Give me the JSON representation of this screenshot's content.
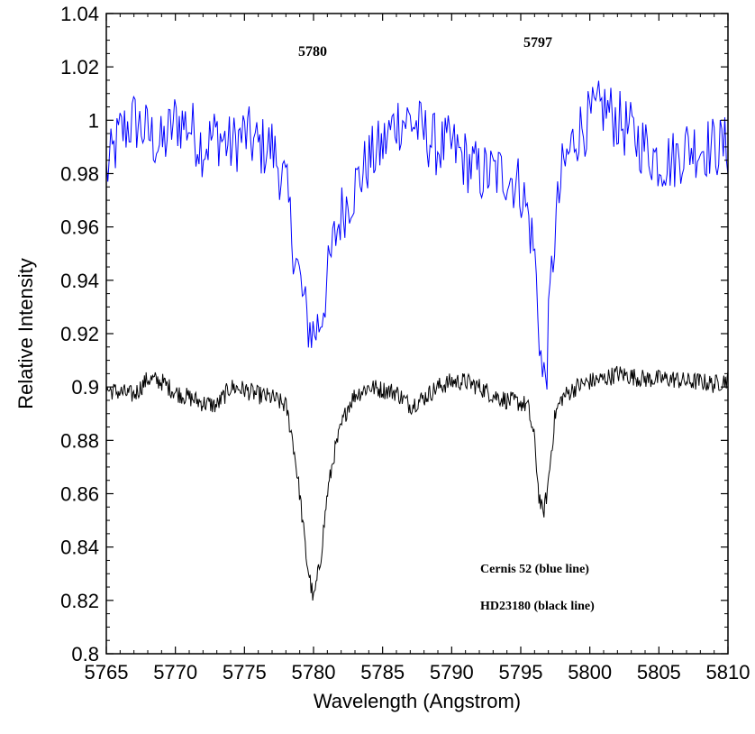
{
  "chart_data": {
    "type": "line",
    "xlabel": "Wavelength (Angstrom)",
    "ylabel": "Relative Intensity",
    "xlim": [
      5765,
      5810
    ],
    "ylim": [
      0.8,
      1.04
    ],
    "x_ticks": [
      "5765",
      "5770",
      "5775",
      "5780",
      "5785",
      "5790",
      "5795",
      "5800",
      "5805",
      "5810"
    ],
    "y_ticks": [
      "0.8",
      "0.82",
      "0.84",
      "0.86",
      "0.88",
      "0.9",
      "0.92",
      "0.94",
      "0.96",
      "0.98",
      "1",
      "1.02",
      "1.04"
    ],
    "grid": false,
    "annotations": {
      "band1": "5780",
      "band2": "5797",
      "legend1": "Cernis 52 (blue line)",
      "legend2": "HD23180 (black line)"
    },
    "series": [
      {
        "color": "#0000ff",
        "x": [
          5765,
          5766,
          5767,
          5768,
          5769,
          5770,
          5771,
          5772,
          5773,
          5774,
          5775,
          5776,
          5777,
          5778,
          5778.5,
          5779,
          5779.5,
          5780,
          5780.5,
          5781,
          5781.5,
          5782,
          5782.5,
          5783,
          5784,
          5785,
          5786,
          5787,
          5788,
          5789,
          5790,
          5791,
          5792,
          5793,
          5794,
          5795,
          5795.5,
          5796,
          5796.3,
          5796.6,
          5796.9,
          5797.2,
          5797.5,
          5798,
          5799,
          5800,
          5801,
          5802,
          5803,
          5804,
          5805,
          5806,
          5807,
          5808,
          5809,
          5810
        ],
        "y": [
          0.98,
          0.995,
          1.0,
          0.995,
          0.99,
          1.0,
          0.998,
          0.99,
          0.995,
          0.99,
          0.995,
          0.99,
          0.99,
          0.975,
          0.955,
          0.94,
          0.925,
          0.92,
          0.925,
          0.94,
          0.955,
          0.965,
          0.97,
          0.975,
          0.985,
          0.99,
          1.0,
          1.0,
          0.995,
          0.99,
          0.99,
          0.985,
          0.98,
          0.98,
          0.98,
          0.975,
          0.965,
          0.95,
          0.925,
          0.9,
          0.91,
          0.94,
          0.96,
          0.98,
          0.995,
          1.0,
          1.005,
          1.0,
          0.995,
          0.99,
          0.985,
          0.985,
          0.99,
          0.99,
          0.99,
          0.99
        ]
      },
      {
        "color": "#000000",
        "x": [
          5765,
          5766,
          5767,
          5768,
          5769,
          5770,
          5771,
          5772,
          5773,
          5774,
          5775,
          5776,
          5777,
          5778,
          5778.5,
          5779,
          5779.5,
          5780,
          5780.5,
          5781,
          5781.5,
          5782,
          5782.5,
          5783,
          5784,
          5785,
          5786,
          5787,
          5788,
          5789,
          5790,
          5791,
          5792,
          5793,
          5794,
          5795,
          5795.5,
          5796,
          5796.3,
          5796.6,
          5796.9,
          5797.2,
          5797.5,
          5798,
          5799,
          5800,
          5801,
          5802,
          5803,
          5804,
          5805,
          5806,
          5807,
          5808,
          5809,
          5810
        ],
        "y": [
          0.899,
          0.898,
          0.897,
          0.903,
          0.902,
          0.898,
          0.896,
          0.894,
          0.893,
          0.9,
          0.899,
          0.897,
          0.896,
          0.893,
          0.88,
          0.86,
          0.835,
          0.82,
          0.835,
          0.86,
          0.875,
          0.885,
          0.893,
          0.897,
          0.9,
          0.899,
          0.898,
          0.893,
          0.896,
          0.9,
          0.902,
          0.902,
          0.9,
          0.897,
          0.895,
          0.894,
          0.893,
          0.88,
          0.86,
          0.852,
          0.86,
          0.875,
          0.89,
          0.896,
          0.9,
          0.902,
          0.903,
          0.905,
          0.904,
          0.903,
          0.903,
          0.903,
          0.902,
          0.902,
          0.901,
          0.903
        ]
      }
    ]
  }
}
